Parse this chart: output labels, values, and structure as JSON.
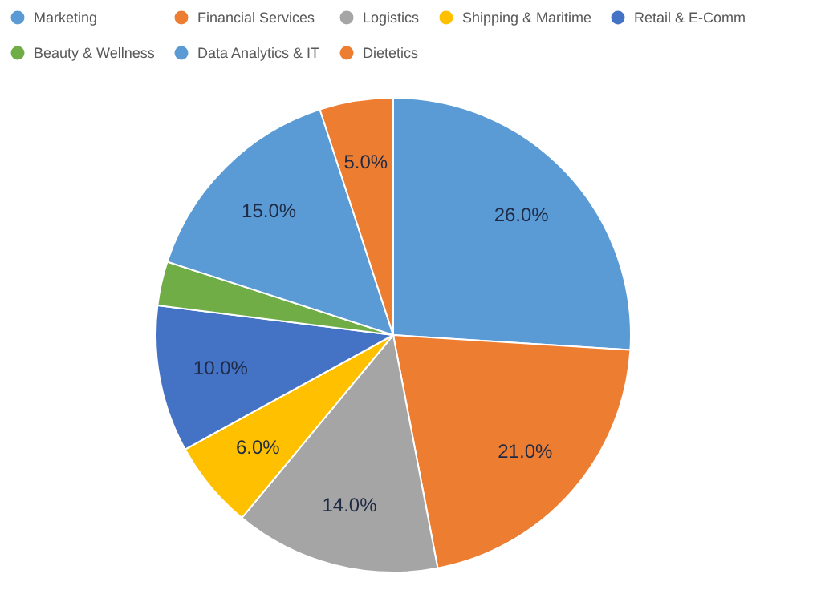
{
  "chart_data": {
    "type": "pie",
    "categories": [
      "Marketing",
      "Financial Services",
      "Logistics",
      "Shipping & Maritime",
      "Retail & E-Comm",
      "Beauty & Wellness",
      "Data Analytics & IT",
      "Dietetics"
    ],
    "values": [
      26,
      21,
      14,
      6,
      10,
      3,
      15,
      5
    ],
    "colors": [
      "#5b9bd5",
      "#ed7d31",
      "#a5a5a5",
      "#ffc000",
      "#4472c4",
      "#70ad47",
      "#5b9bd5",
      "#ed7d31"
    ],
    "value_labels": [
      "26.0%",
      "21.0%",
      "14.0%",
      "6.0%",
      "10.0%",
      null,
      "15.0%",
      "5.0%"
    ],
    "legend": "top"
  }
}
